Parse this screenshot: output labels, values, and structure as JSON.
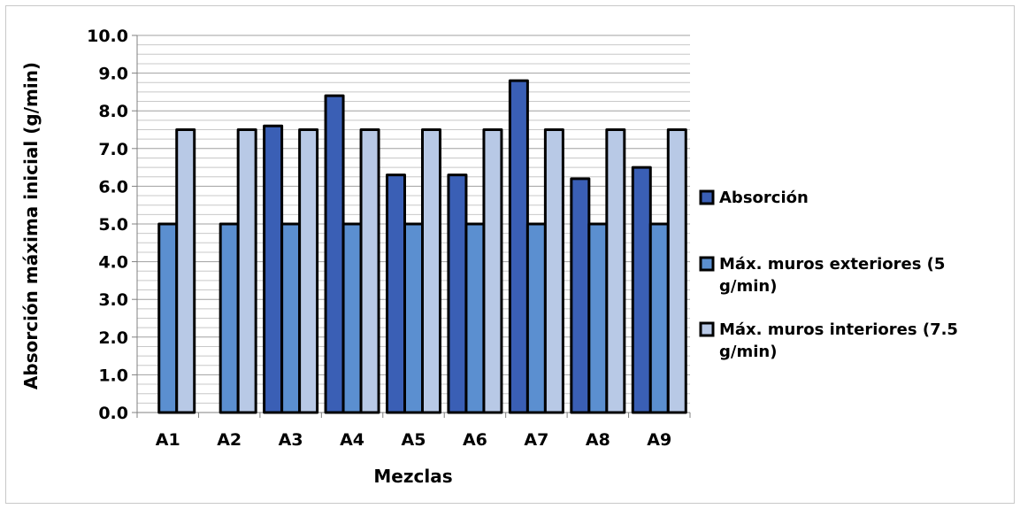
{
  "chart_data": {
    "type": "bar",
    "title": "",
    "xlabel": "Mezclas",
    "ylabel": "Absorción máxima inicial (g/min)",
    "categories": [
      "A1",
      "A2",
      "A3",
      "A4",
      "A5",
      "A6",
      "A7",
      "A8",
      "A9"
    ],
    "ylim": [
      0,
      10
    ],
    "y_ticks": [
      "0.0",
      "1.0",
      "2.0",
      "3.0",
      "4.0",
      "5.0",
      "6.0",
      "7.0",
      "8.0",
      "9.0",
      "10.0"
    ],
    "grid": true,
    "legend_position": "right",
    "series": [
      {
        "name": "Absorción",
        "color": "#3a5fb5",
        "values": [
          0,
          0,
          7.6,
          8.4,
          6.3,
          6.3,
          8.8,
          6.2,
          6.5
        ]
      },
      {
        "name": "Máx. muros exteriores (5 g/min)",
        "legend_lines": [
          "Máx. muros exteriores (5",
          "g/min)"
        ],
        "color": "#5b8fd0",
        "values": [
          5,
          5,
          5,
          5,
          5,
          5,
          5,
          5,
          5
        ]
      },
      {
        "name": "Máx. muros interiores (7.5 g/min)",
        "legend_lines": [
          "Máx. muros interiores (7.5",
          "g/min)"
        ],
        "color": "#b8c9e6",
        "values": [
          7.5,
          7.5,
          7.5,
          7.5,
          7.5,
          7.5,
          7.5,
          7.5,
          7.5
        ]
      }
    ]
  }
}
